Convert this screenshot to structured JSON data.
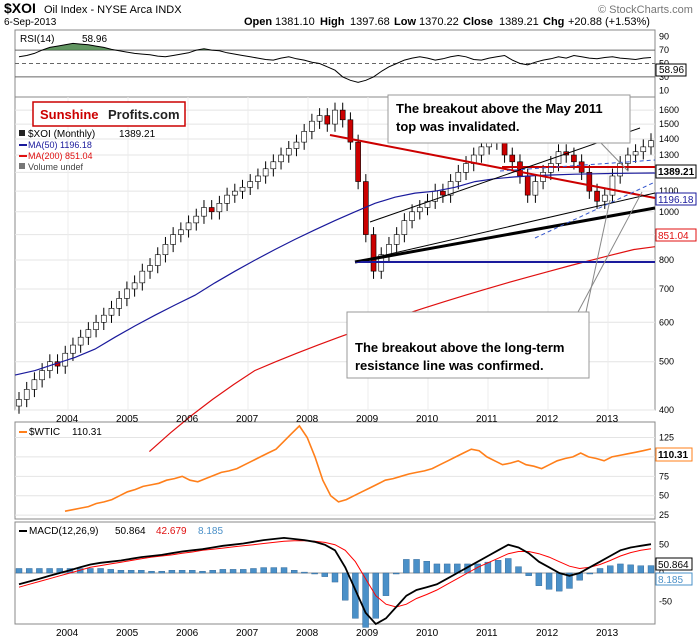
{
  "header": {
    "symbol": "$XOI",
    "name": "Oil Index - NYSE Arca INDX",
    "date": "6-Sep-2013",
    "watermark": "© StockCharts.com",
    "ohlc": {
      "open_label": "Open",
      "open": "1381.10",
      "high_label": "High",
      "high": "1397.68",
      "low_label": "Low",
      "low": "1370.22",
      "close_label": "Close",
      "close": "1389.21",
      "chg_label": "Chg",
      "chg": "+20.88 (+1.53%)"
    }
  },
  "logo": {
    "part1": "Sunshine",
    "part2": "Profits.com"
  },
  "annotations": {
    "box1_line1": "The breakout above the May 2011",
    "box1_line2": "top was invalidated.",
    "box2_line1": "The breakout above the long-term",
    "box2_line2": "resistance line was confirmed."
  },
  "colors": {
    "price_up": "#ffffff",
    "price_down": "#cc0000",
    "ma50": "#1a1a9c",
    "ma200": "#e01010",
    "trend_red": "#cc0000",
    "channel_blue": "#0000aa",
    "rsi_fill": "#3a7a3a",
    "wtic": "#ff7f1a",
    "macd_line": "#000000",
    "signal_line": "#ff0000",
    "histogram": "#4a90c8"
  },
  "chart_data": [
    {
      "id": "rsi",
      "type": "line",
      "title": "RSI(14)",
      "value": "58.96",
      "y_ticks": [
        "90",
        "70",
        "50",
        "30",
        "10"
      ],
      "ylim": [
        0,
        100
      ],
      "bands": [
        30,
        50,
        70
      ],
      "values": [
        60,
        62,
        65,
        70,
        74,
        76,
        78,
        80,
        79,
        78,
        76,
        74,
        71,
        69,
        67,
        65,
        64,
        63,
        61,
        60,
        62,
        64,
        66,
        70,
        72,
        70,
        69,
        66,
        64,
        62,
        60,
        58,
        56,
        55,
        58,
        60,
        57,
        55,
        52,
        50,
        45,
        40,
        30,
        25,
        22,
        25,
        30,
        38,
        45,
        50,
        55,
        58,
        60,
        58,
        55,
        57,
        60,
        62,
        60,
        56,
        55,
        58,
        60,
        62,
        55,
        50,
        48,
        52,
        55,
        57,
        60,
        58,
        62,
        60,
        58,
        57,
        59,
        60,
        58,
        57,
        56,
        58,
        59
      ]
    },
    {
      "id": "price",
      "type": "candlestick",
      "title": "$XOI (Monthly)",
      "last": "1389.21",
      "scale": "log",
      "ylim": [
        400,
        1700
      ],
      "y_ticks": [
        "1600",
        "1500",
        "1400",
        "1300",
        "1200",
        "1100",
        "1000",
        "900",
        "800",
        "700",
        "600",
        "500",
        "400"
      ],
      "x_ticks": [
        "2004",
        "2005",
        "2006",
        "2007",
        "2008",
        "2009",
        "2010",
        "2011",
        "2012",
        "2013"
      ],
      "legend": {
        "ma50": "MA(50) 1196.18",
        "ma200": "MA(200) 851.04",
        "volume": "Volume undef"
      },
      "labels": {
        "price": "1389.21",
        "ma50": "1196.18",
        "ma200": "851.04"
      },
      "closes": [
        420,
        440,
        460,
        480,
        500,
        490,
        520,
        540,
        560,
        580,
        600,
        620,
        640,
        670,
        700,
        720,
        760,
        780,
        820,
        860,
        900,
        920,
        950,
        980,
        1020,
        1000,
        1040,
        1080,
        1100,
        1120,
        1150,
        1180,
        1220,
        1260,
        1300,
        1340,
        1380,
        1450,
        1520,
        1560,
        1500,
        1600,
        1530,
        1380,
        1150,
        900,
        760,
        820,
        860,
        900,
        960,
        1000,
        1020,
        1050,
        1100,
        1080,
        1150,
        1200,
        1250,
        1300,
        1350,
        1400,
        1380,
        1300,
        1260,
        1180,
        1080,
        1150,
        1200,
        1250,
        1320,
        1300,
        1260,
        1200,
        1100,
        1050,
        1080,
        1180,
        1250,
        1300,
        1320,
        1350,
        1389.21
      ],
      "ma50": [
        470,
        480,
        495,
        510,
        530,
        560,
        590,
        620,
        650,
        680,
        720,
        760,
        800,
        840,
        880,
        920,
        960,
        1000,
        1040,
        1070,
        1090,
        1100,
        1120,
        1150,
        1165,
        1175,
        1182,
        1186,
        1190,
        1192,
        1194,
        1195,
        1196.18
      ],
      "ma200": [
        330,
        360,
        390,
        420,
        450,
        480,
        500,
        520,
        540,
        560,
        580,
        600,
        620,
        640,
        660,
        680,
        700,
        720,
        740,
        760,
        780,
        800,
        820,
        840,
        851.04
      ]
    },
    {
      "id": "wtic",
      "type": "line",
      "title": "$WTIC",
      "value": "110.31",
      "y_ticks": [
        "125",
        "100",
        "75",
        "50",
        "25"
      ],
      "ylim": [
        20,
        145
      ],
      "values": [
        30,
        32,
        34,
        36,
        40,
        42,
        45,
        50,
        55,
        58,
        62,
        64,
        66,
        70,
        72,
        75,
        70,
        68,
        72,
        76,
        80,
        82,
        85,
        90,
        95,
        100,
        105,
        110,
        120,
        130,
        140,
        125,
        100,
        70,
        50,
        42,
        45,
        50,
        55,
        60,
        65,
        70,
        72,
        75,
        78,
        80,
        82,
        85,
        90,
        95,
        100,
        105,
        110,
        108,
        100,
        95,
        90,
        92,
        95,
        90,
        88,
        85,
        90,
        95,
        98,
        100,
        105,
        100,
        98,
        95,
        100,
        102,
        104,
        106,
        108,
        110.31
      ]
    },
    {
      "id": "macd",
      "type": "line",
      "title": "MACD(12,26,9)",
      "values_text": {
        "macd": "50.864",
        "signal": "42.679",
        "hist": "8.185"
      },
      "y_ticks": [
        "50",
        "0",
        "-50"
      ],
      "ylim": [
        -90,
        90
      ],
      "macd": [
        -20,
        -15,
        -10,
        -5,
        0,
        5,
        10,
        15,
        18,
        20,
        22,
        25,
        28,
        30,
        32,
        35,
        38,
        40,
        42,
        45,
        48,
        50,
        52,
        55,
        58,
        60,
        62,
        60,
        58,
        55,
        50,
        40,
        10,
        -30,
        -70,
        -90,
        -80,
        -60,
        -40,
        -30,
        -25,
        -20,
        -10,
        0,
        10,
        20,
        30,
        40,
        50,
        45,
        35,
        20,
        10,
        0,
        -5,
        0,
        10,
        20,
        30,
        40,
        45,
        48,
        50.864
      ],
      "signal": [
        -25,
        -20,
        -15,
        -10,
        -5,
        0,
        5,
        10,
        13,
        16,
        19,
        22,
        25,
        28,
        30,
        32,
        35,
        37,
        40,
        42,
        44,
        46,
        48,
        50,
        52,
        54,
        56,
        57,
        57,
        56,
        54,
        50,
        40,
        20,
        -10,
        -40,
        -55,
        -60,
        -55,
        -45,
        -38,
        -30,
        -20,
        -10,
        0,
        10,
        18,
        26,
        34,
        38,
        38,
        34,
        28,
        20,
        12,
        8,
        10,
        15,
        22,
        30,
        36,
        40,
        42.679
      ]
    }
  ]
}
